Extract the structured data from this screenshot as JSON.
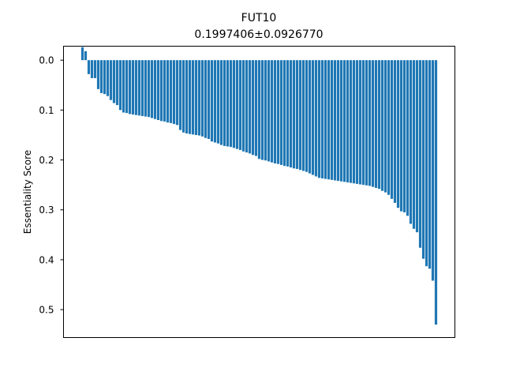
{
  "chart_data": {
    "type": "bar",
    "title": "FUT10",
    "subtitle": "0.1997406±0.0926770",
    "xlabel": "",
    "ylabel": "Essentiality Score",
    "y_inverted": true,
    "ylim": [
      0.556,
      -0.028
    ],
    "yticks": [
      0.0,
      0.1,
      0.2,
      0.3,
      0.4,
      0.5
    ],
    "ytick_labels": [
      "0.0",
      "0.1",
      "0.2",
      "0.3",
      "0.4",
      "0.5"
    ],
    "x_ticks_visible": false,
    "grid": false,
    "bar_color": "#1f77b4",
    "values": [
      -0.026,
      -0.018,
      0.028,
      0.036,
      0.036,
      0.058,
      0.066,
      0.068,
      0.072,
      0.08,
      0.086,
      0.09,
      0.1,
      0.105,
      0.106,
      0.108,
      0.109,
      0.11,
      0.111,
      0.112,
      0.113,
      0.114,
      0.116,
      0.118,
      0.12,
      0.122,
      0.123,
      0.125,
      0.126,
      0.128,
      0.13,
      0.14,
      0.145,
      0.147,
      0.148,
      0.149,
      0.15,
      0.151,
      0.153,
      0.156,
      0.158,
      0.163,
      0.165,
      0.167,
      0.17,
      0.172,
      0.173,
      0.174,
      0.176,
      0.178,
      0.18,
      0.183,
      0.185,
      0.187,
      0.19,
      0.192,
      0.198,
      0.2,
      0.201,
      0.203,
      0.205,
      0.207,
      0.208,
      0.21,
      0.212,
      0.213,
      0.215,
      0.217,
      0.218,
      0.22,
      0.222,
      0.224,
      0.227,
      0.23,
      0.233,
      0.236,
      0.237,
      0.238,
      0.239,
      0.24,
      0.241,
      0.242,
      0.243,
      0.244,
      0.245,
      0.246,
      0.247,
      0.248,
      0.249,
      0.25,
      0.251,
      0.252,
      0.254,
      0.256,
      0.258,
      0.262,
      0.265,
      0.27,
      0.278,
      0.286,
      0.296,
      0.303,
      0.305,
      0.312,
      0.328,
      0.338,
      0.345,
      0.376,
      0.398,
      0.413,
      0.418,
      0.442,
      0.53
    ]
  }
}
